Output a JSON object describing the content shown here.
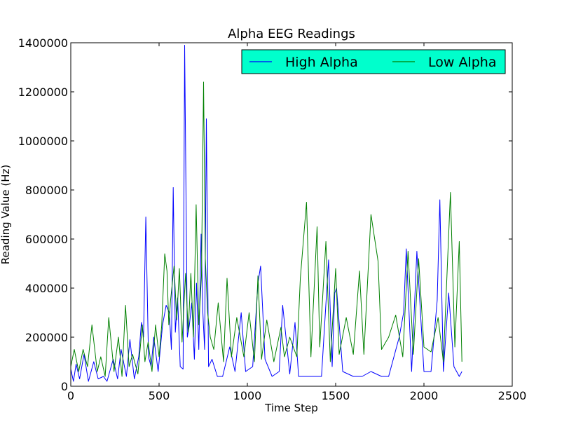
{
  "chart_data": {
    "type": "line",
    "title": "Alpha EEG Readings",
    "xlabel": "Time Step",
    "ylabel": "Reading Value (Hz)",
    "xlim": [
      0,
      2500
    ],
    "ylim": [
      0,
      1400000
    ],
    "xticks": [
      0,
      500,
      1000,
      1500,
      2000,
      2500
    ],
    "yticks": [
      0,
      200000,
      400000,
      600000,
      800000,
      1000000,
      1200000,
      1400000
    ],
    "grid": false,
    "legend": {
      "placement": "upper-right",
      "background": "#00ffcc"
    },
    "series": [
      {
        "name": "High Alpha",
        "color": "#0000ff",
        "x": [
          0,
          15,
          30,
          50,
          75,
          100,
          130,
          155,
          185,
          205,
          240,
          265,
          285,
          315,
          335,
          360,
          385,
          400,
          412,
          425,
          440,
          455,
          470,
          495,
          520,
          540,
          558,
          570,
          580,
          592,
          605,
          620,
          636,
          645,
          660,
          672,
          685,
          700,
          712,
          725,
          738,
          748,
          758,
          768,
          780,
          800,
          830,
          860,
          900,
          930,
          965,
          990,
          1030,
          1060,
          1075,
          1100,
          1140,
          1180,
          1200,
          1240,
          1270,
          1290,
          1330,
          1380,
          1420,
          1460,
          1480,
          1495,
          1505,
          1540,
          1600,
          1650,
          1700,
          1760,
          1800,
          1860,
          1885,
          1900,
          1930,
          1960,
          2000,
          2040,
          2075,
          2090,
          2110,
          2140,
          2170,
          2200,
          2215
        ],
        "y": [
          70000,
          20000,
          90000,
          30000,
          130000,
          20000,
          100000,
          30000,
          40000,
          20000,
          110000,
          30000,
          150000,
          40000,
          190000,
          30000,
          120000,
          260000,
          200000,
          690000,
          120000,
          80000,
          200000,
          60000,
          250000,
          330000,
          300000,
          150000,
          810000,
          220000,
          360000,
          80000,
          70000,
          1390000,
          200000,
          250000,
          340000,
          110000,
          420000,
          150000,
          620000,
          300000,
          150000,
          1090000,
          80000,
          110000,
          40000,
          40000,
          160000,
          60000,
          300000,
          60000,
          80000,
          420000,
          490000,
          110000,
          40000,
          60000,
          330000,
          50000,
          260000,
          40000,
          40000,
          40000,
          40000,
          515000,
          80000,
          380000,
          400000,
          60000,
          40000,
          40000,
          60000,
          40000,
          40000,
          200000,
          300000,
          560000,
          60000,
          550000,
          60000,
          60000,
          350000,
          760000,
          60000,
          380000,
          80000,
          40000,
          60000
        ]
      },
      {
        "name": "Low Alpha",
        "color": "#008000",
        "x": [
          0,
          20,
          45,
          70,
          95,
          120,
          150,
          170,
          195,
          215,
          245,
          270,
          290,
          310,
          330,
          350,
          380,
          405,
          420,
          438,
          460,
          480,
          500,
          515,
          532,
          545,
          555,
          565,
          585,
          600,
          615,
          630,
          650,
          665,
          680,
          695,
          710,
          725,
          740,
          752,
          762,
          775,
          790,
          810,
          835,
          865,
          885,
          910,
          940,
          980,
          1010,
          1040,
          1060,
          1080,
          1110,
          1150,
          1190,
          1210,
          1240,
          1280,
          1300,
          1335,
          1360,
          1395,
          1410,
          1445,
          1470,
          1500,
          1520,
          1560,
          1600,
          1635,
          1660,
          1700,
          1740,
          1760,
          1800,
          1840,
          1880,
          1910,
          1940,
          1970,
          2000,
          2040,
          2080,
          2110,
          2150,
          2175,
          2200,
          2215
        ],
        "y": [
          80000,
          150000,
          60000,
          150000,
          80000,
          250000,
          60000,
          120000,
          40000,
          280000,
          60000,
          200000,
          40000,
          330000,
          80000,
          130000,
          50000,
          250000,
          100000,
          180000,
          60000,
          250000,
          120000,
          250000,
          540000,
          470000,
          250000,
          350000,
          490000,
          270000,
          480000,
          180000,
          460000,
          220000,
          460000,
          200000,
          740000,
          250000,
          450000,
          1240000,
          520000,
          300000,
          200000,
          150000,
          340000,
          100000,
          440000,
          120000,
          280000,
          120000,
          300000,
          100000,
          450000,
          110000,
          270000,
          100000,
          240000,
          120000,
          200000,
          120000,
          440000,
          750000,
          120000,
          650000,
          160000,
          590000,
          100000,
          480000,
          130000,
          280000,
          130000,
          470000,
          130000,
          700000,
          510000,
          150000,
          200000,
          290000,
          120000,
          550000,
          130000,
          520000,
          160000,
          140000,
          280000,
          100000,
          790000,
          160000,
          590000,
          100000
        ]
      }
    ]
  }
}
